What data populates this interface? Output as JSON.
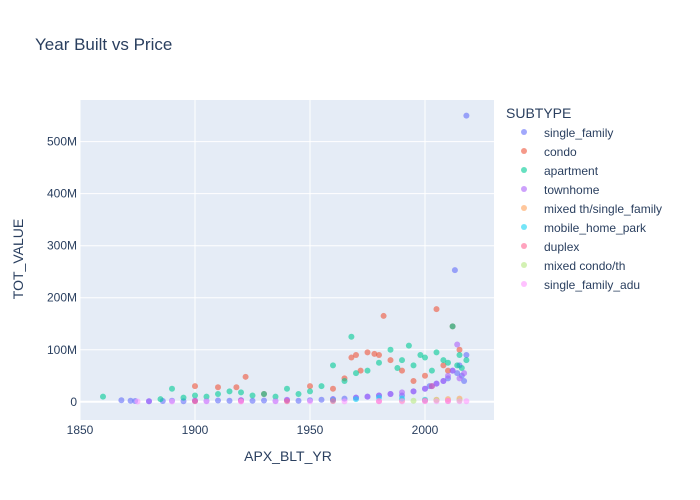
{
  "chart_data": {
    "type": "scatter",
    "title": "Year Built vs Price",
    "xlabel": "APX_BLT_YR",
    "ylabel": "TOT_VALUE",
    "xlim": [
      1850,
      2030
    ],
    "ylim": [
      -35000000,
      580000000
    ],
    "x_ticks": [
      1850,
      1900,
      1950,
      2000
    ],
    "y_ticks": [
      0,
      100000000,
      200000000,
      300000000,
      400000000,
      500000000
    ],
    "y_tick_labels": [
      "0",
      "100M",
      "200M",
      "300M",
      "400M",
      "500M"
    ],
    "grid": true,
    "legend": {
      "title": "SUBTYPE",
      "placement": "right"
    },
    "colors": {
      "plot_bg": "#e5ecf6",
      "grid": "#ffffff",
      "text": "#2a3f5f"
    },
    "series": [
      {
        "name": "single_family",
        "color": "#636efa",
        "x": [
          1868,
          1872,
          1874,
          1880,
          1886,
          1890,
          1895,
          1900,
          1905,
          1910,
          1915,
          1920,
          1925,
          1930,
          1935,
          1940,
          1945,
          1950,
          1955,
          1960,
          1965,
          1970,
          1975,
          1980,
          1985,
          1990,
          1995,
          2000,
          2002,
          2005,
          2008,
          2010,
          2012,
          2014,
          2015,
          2016,
          2017,
          2018,
          2013,
          2018
        ],
        "y": [
          3000000,
          2000000,
          1500000,
          1000000,
          1500000,
          2000000,
          1000000,
          2000000,
          1500000,
          2500000,
          2000000,
          3000000,
          2000000,
          2500000,
          1500000,
          3000000,
          2000000,
          3000000,
          4000000,
          5000000,
          6000000,
          8000000,
          10000000,
          12000000,
          15000000,
          12000000,
          20000000,
          25000000,
          30000000,
          35000000,
          40000000,
          45000000,
          60000000,
          55000000,
          70000000,
          50000000,
          40000000,
          90000000,
          253000000,
          550000000
        ]
      },
      {
        "name": "condo",
        "color": "#EF553B",
        "x": [
          1900,
          1910,
          1918,
          1922,
          1930,
          1950,
          1960,
          1965,
          1968,
          1970,
          1972,
          1975,
          1978,
          1980,
          1982,
          1985,
          1990,
          1995,
          2000,
          2003,
          2005,
          2008,
          2010,
          2012,
          2015
        ],
        "y": [
          30000000,
          28000000,
          28000000,
          48000000,
          15000000,
          30000000,
          25000000,
          45000000,
          85000000,
          90000000,
          60000000,
          95000000,
          92000000,
          90000000,
          165000000,
          80000000,
          60000000,
          40000000,
          50000000,
          30000000,
          178000000,
          70000000,
          60000000,
          145000000,
          100000000
        ]
      },
      {
        "name": "apartment",
        "color": "#00cc96",
        "x": [
          1860,
          1885,
          1890,
          1895,
          1900,
          1905,
          1910,
          1915,
          1920,
          1925,
          1930,
          1935,
          1940,
          1945,
          1950,
          1955,
          1960,
          1965,
          1968,
          1970,
          1975,
          1980,
          1985,
          1988,
          1990,
          1993,
          1995,
          1998,
          2000,
          2003,
          2005,
          2008,
          2010,
          2012,
          2014,
          2015,
          2016,
          2018
        ],
        "y": [
          10000000,
          5000000,
          25000000,
          8000000,
          12000000,
          10000000,
          15000000,
          20000000,
          18000000,
          12000000,
          15000000,
          10000000,
          25000000,
          15000000,
          20000000,
          30000000,
          70000000,
          40000000,
          125000000,
          55000000,
          60000000,
          75000000,
          100000000,
          65000000,
          80000000,
          108000000,
          70000000,
          90000000,
          85000000,
          60000000,
          95000000,
          80000000,
          75000000,
          145000000,
          70000000,
          90000000,
          65000000,
          80000000
        ]
      },
      {
        "name": "townhome",
        "color": "#ab63fa",
        "x": [
          1880,
          1900,
          1920,
          1940,
          1960,
          1970,
          1975,
          1980,
          1985,
          1990,
          1995,
          2000,
          2003,
          2005,
          2008,
          2010,
          2012,
          2014,
          2015,
          2017
        ],
        "y": [
          1000000,
          2000000,
          3000000,
          4000000,
          5000000,
          8000000,
          10000000,
          12000000,
          15000000,
          18000000,
          20000000,
          25000000,
          30000000,
          35000000,
          40000000,
          50000000,
          60000000,
          110000000,
          45000000,
          55000000
        ]
      },
      {
        "name": "mixed th/single_family",
        "color": "#FFA15A",
        "x": [
          1990,
          2000,
          2005,
          2010,
          2015
        ],
        "y": [
          2000000,
          3000000,
          4000000,
          5000000,
          6000000
        ]
      },
      {
        "name": "mobile_home_park",
        "color": "#19d3f3",
        "x": [
          1960,
          1970,
          1980,
          1990,
          2000
        ],
        "y": [
          3000000,
          5000000,
          8000000,
          6000000,
          4000000
        ]
      },
      {
        "name": "duplex",
        "color": "#FF6692",
        "x": [
          1900,
          1920,
          1940,
          1960,
          1980,
          2000,
          2010
        ],
        "y": [
          1000000,
          1200000,
          1000000,
          1500000,
          1200000,
          1800000,
          1500000
        ]
      },
      {
        "name": "mixed condo/th",
        "color": "#B6E880",
        "x": [
          1995,
          2005,
          2015
        ],
        "y": [
          2000000,
          3000000,
          2500000
        ]
      },
      {
        "name": "single_family_adu",
        "color": "#FF97FF",
        "x": [
          1875,
          1890,
          1905,
          1920,
          1935,
          1950,
          1965,
          1980,
          1990,
          2000,
          2005,
          2010,
          2015,
          2018
        ],
        "y": [
          500000,
          600000,
          700000,
          600000,
          800000,
          700000,
          900000,
          1000000,
          900000,
          1100000,
          1000000,
          1200000,
          1100000,
          1000000
        ]
      }
    ]
  }
}
